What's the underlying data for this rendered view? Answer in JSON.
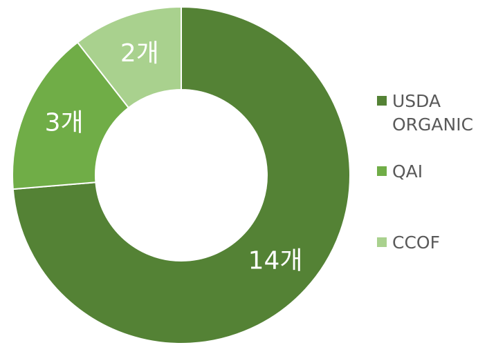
{
  "chart_data": {
    "type": "donut",
    "categories": [
      "USDA ORGANIC",
      "QAI",
      "CCOF"
    ],
    "values": [
      14,
      3,
      2
    ],
    "value_labels": [
      "14개",
      "3개",
      "2개"
    ],
    "colors": [
      "#548235",
      "#70ad47",
      "#a9d18e"
    ],
    "legend": "right"
  }
}
